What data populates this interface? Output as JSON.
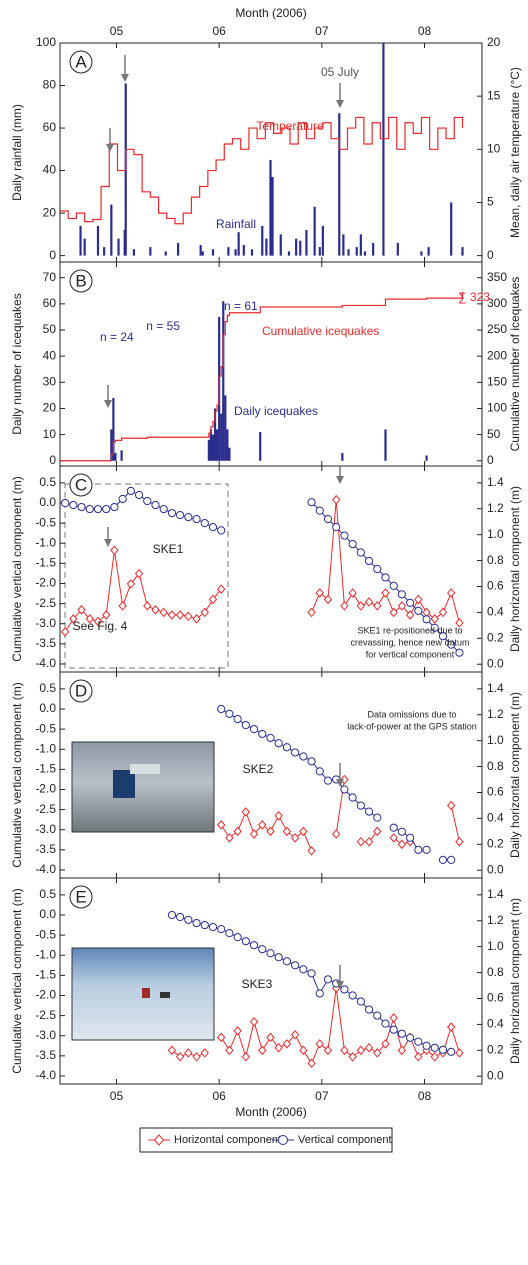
{
  "chart_data": [
    {
      "type": "combo",
      "label": "A",
      "x_label": "Month (2006)",
      "y_label": "Daily rainfall (mm)",
      "y2_label": "Mean, daily air temperature (°C)",
      "xlim": [
        4.45,
        8.56
      ],
      "xticks": [
        {
          "value": 5,
          "label": "05"
        },
        {
          "value": 6,
          "label": "06"
        },
        {
          "value": 7,
          "label": "07"
        },
        {
          "value": 8,
          "label": "08"
        }
      ],
      "ylim": [
        -3,
        100
      ],
      "yticks": [
        0,
        20,
        40,
        60,
        80,
        100
      ],
      "y2lim": [
        -0.6,
        20
      ],
      "y2ticks": [
        0,
        5,
        10,
        15,
        20
      ],
      "annotations": [
        "05 July",
        "Temperature",
        "Rainfall"
      ],
      "series": [
        {
          "name": "Rainfall",
          "type": "bar",
          "color": "#2b2d8c",
          "x": [
            4.65,
            4.69,
            4.82,
            4.88,
            4.95,
            5.02,
            5.08,
            5.09,
            5.17,
            5.33,
            5.48,
            5.6,
            5.82,
            5.84,
            5.94,
            6.09,
            6.16,
            6.19,
            6.24,
            6.32,
            6.42,
            6.46,
            6.5,
            6.52,
            6.6,
            6.68,
            6.75,
            6.79,
            6.85,
            6.93,
            6.98,
            7.01,
            7.17,
            7.21,
            7.26,
            7.34,
            7.38,
            7.42,
            7.5,
            7.6,
            7.74,
            7.97,
            8.04,
            8.26,
            8.37
          ],
          "values": [
            14,
            8,
            14,
            4,
            24,
            8,
            12,
            81,
            3,
            4,
            2,
            6,
            5,
            2,
            3,
            4,
            3,
            11,
            5,
            3,
            14,
            8,
            45,
            37,
            10,
            2,
            8,
            7,
            12,
            23,
            4,
            14,
            67,
            10,
            3,
            4,
            10,
            2,
            6,
            100,
            6,
            2,
            4,
            25,
            4
          ]
        },
        {
          "name": "Temperature",
          "type": "step",
          "axis": "y2",
          "color": "#e8292b",
          "x": [
            4.45,
            4.53,
            4.61,
            4.69,
            4.77,
            4.85,
            4.93,
            5.01,
            5.09,
            5.17,
            5.25,
            5.33,
            5.41,
            5.49,
            5.57,
            5.65,
            5.73,
            5.81,
            5.89,
            5.97,
            6.05,
            6.13,
            6.21,
            6.29,
            6.37,
            6.45,
            6.53,
            6.61,
            6.69,
            6.77,
            6.85,
            6.93,
            7.01,
            7.09,
            7.17,
            7.25,
            7.33,
            7.41,
            7.49,
            7.57,
            7.65,
            7.73,
            7.81,
            7.89,
            7.97,
            8.05,
            8.13,
            8.21,
            8.29,
            8.37
          ],
          "values": [
            4.2,
            3.5,
            4.0,
            3.2,
            3.4,
            6.5,
            10.5,
            8,
            10,
            9.5,
            6,
            5.5,
            4,
            3.5,
            3,
            4,
            5.5,
            6.5,
            8,
            9,
            10.5,
            11,
            10,
            12,
            11,
            12.5,
            11.5,
            12,
            10.5,
            12.5,
            11,
            12,
            12.5,
            11,
            10,
            12,
            13,
            10.5,
            12.5,
            11,
            13,
            10,
            12.5,
            11.5,
            13,
            10,
            12,
            11,
            13,
            12
          ]
        }
      ]
    },
    {
      "type": "combo",
      "label": "B",
      "y_label": "Daily number of icequakes",
      "y2_label": "Cumulative number of icequakes",
      "xlim": [
        4.45,
        8.56
      ],
      "ylim": [
        -2,
        76
      ],
      "yticks": [
        0,
        10,
        20,
        30,
        40,
        50,
        60,
        70
      ],
      "y2lim": [
        -10,
        380
      ],
      "y2ticks": [
        0,
        50,
        100,
        150,
        200,
        250,
        300,
        350
      ],
      "annotations": [
        "n = 24",
        "n = 55",
        "n = 61",
        "Cumulative icequakes",
        "Daily icequakes",
        "∑ 323"
      ],
      "series": [
        {
          "name": "Daily icequakes",
          "type": "bar",
          "color": "#2b2d8c",
          "x": [
            4.95,
            4.97,
            4.99,
            5.05,
            5.9,
            5.92,
            5.94,
            5.96,
            5.98,
            6.0,
            6.02,
            6.04,
            6.06,
            6.08,
            6.1,
            6.4,
            7.2,
            7.62,
            8.02
          ],
          "values": [
            12,
            24,
            3,
            4,
            8,
            12,
            10,
            20,
            12,
            55,
            18,
            61,
            25,
            12,
            5,
            11,
            3,
            12,
            2
          ]
        },
        {
          "name": "Cumulative icequakes",
          "type": "step",
          "axis": "y2",
          "color": "#e8292b",
          "x": [
            4.45,
            4.93,
            4.95,
            4.97,
            4.99,
            5.05,
            5.3,
            5.88,
            5.9,
            5.92,
            5.94,
            5.96,
            5.98,
            6.0,
            6.02,
            6.04,
            6.06,
            6.08,
            6.1,
            6.4,
            7.2,
            7.62,
            8.02,
            8.37
          ],
          "values": [
            0,
            0,
            12,
            36,
            39,
            43,
            45,
            45,
            53,
            65,
            75,
            95,
            107,
            162,
            180,
            241,
            266,
            278,
            283,
            294,
            297,
            309,
            311,
            323
          ]
        }
      ]
    },
    {
      "type": "line",
      "label": "C",
      "y_label": "Cumulative vertical component (m)",
      "y2_label": "Daily horizontal component (m)",
      "xlim": [
        4.45,
        8.56
      ],
      "ylim": [
        -4.2,
        0.92
      ],
      "yticks": [
        0.5,
        {
          "value": 0,
          "label": "0.0"
        },
        -0.5,
        {
          "value": -1,
          "label": "-1.0"
        },
        -1.5,
        {
          "value": -2,
          "label": "-2.0"
        },
        -2.5,
        {
          "value": -3,
          "label": "-3.0"
        },
        -3.5,
        {
          "value": -4,
          "label": "-4.0"
        }
      ],
      "y2lim": [
        -0.06,
        1.53
      ],
      "y2ticks": [
        {
          "value": 0,
          "label": "0.0"
        },
        0.2,
        0.4,
        0.6,
        0.8,
        {
          "value": 1,
          "label": "1.0"
        },
        1.2,
        1.4
      ],
      "annotations": [
        "SKE1",
        "See Fig. 4",
        "SKE1 re-positioned due to",
        "crevassing, hence new datum",
        "for vertical component"
      ],
      "x": [
        4.5,
        4.58,
        4.66,
        4.74,
        4.82,
        4.9,
        4.98,
        5.06,
        5.14,
        5.22,
        5.3,
        5.38,
        5.46,
        5.54,
        5.62,
        5.7,
        5.78,
        5.86,
        5.94,
        6.02,
        6.1,
        6.18,
        6.26,
        6.34,
        6.42,
        6.5,
        6.58,
        6.66,
        6.74,
        6.82,
        6.9,
        6.98,
        7.06,
        7.14,
        7.22,
        7.3,
        7.38,
        7.46,
        7.54,
        7.62,
        7.7,
        7.78,
        7.86,
        7.94,
        8.02,
        8.1,
        8.18,
        8.26,
        8.34
      ],
      "series": [
        {
          "name": "Horizontal component",
          "axis": "y2",
          "marker": "diamond",
          "color": "#e8292b",
          "values": [
            0.25,
            0.35,
            0.42,
            0.35,
            0.33,
            0.38,
            0.88,
            0.45,
            0.62,
            0.7,
            0.45,
            0.42,
            0.4,
            0.38,
            0.38,
            0.37,
            0.35,
            0.4,
            0.5,
            0.58,
            null,
            null,
            null,
            null,
            null,
            null,
            null,
            null,
            null,
            null,
            0.4,
            0.55,
            0.5,
            1.27,
            0.45,
            0.55,
            0.45,
            0.48,
            0.45,
            0.55,
            0.4,
            0.45,
            0.38,
            0.5,
            0.4,
            0.35,
            0.4,
            0.55,
            0.32
          ]
        },
        {
          "name": "Vertical component",
          "marker": "circle",
          "color": "#2a2f8f",
          "values": [
            0.0,
            -0.05,
            -0.1,
            -0.15,
            -0.15,
            -0.15,
            -0.1,
            0.1,
            0.3,
            0.2,
            0.05,
            -0.05,
            -0.15,
            -0.25,
            -0.3,
            -0.35,
            -0.4,
            -0.5,
            -0.6,
            -0.68,
            null,
            null,
            null,
            null,
            null,
            null,
            null,
            null,
            null,
            null,
            0.02,
            -0.19,
            -0.4,
            -0.6,
            -0.81,
            -1.02,
            -1.23,
            -1.44,
            -1.64,
            -1.85,
            -2.06,
            -2.27,
            -2.48,
            -2.68,
            -2.89,
            -3.1,
            -3.31,
            -3.52,
            -3.72
          ]
        }
      ]
    },
    {
      "type": "line",
      "label": "D",
      "y_label": "Cumulative vertical component (m)",
      "y2_label": "Daily horizontal component (m)",
      "xlim": [
        4.45,
        8.56
      ],
      "ylim": [
        -4.2,
        0.92
      ],
      "yticks": [
        0.5,
        {
          "value": 0,
          "label": "0.0"
        },
        -0.5,
        {
          "value": -1,
          "label": "-1.0"
        },
        -1.5,
        {
          "value": -2,
          "label": "-2.0"
        },
        -2.5,
        {
          "value": -3,
          "label": "-3.0"
        },
        -3.5,
        {
          "value": -4,
          "label": "-4.0"
        }
      ],
      "y2lim": [
        -0.06,
        1.53
      ],
      "y2ticks": [
        {
          "value": 0,
          "label": "0.0"
        },
        0.2,
        0.4,
        0.6,
        0.8,
        {
          "value": 1,
          "label": "1.0"
        },
        1.2,
        1.4
      ],
      "annotations": [
        "Data omissions due to",
        "lack-of-power at the GPS station",
        "SKE2"
      ],
      "x": [
        4.5,
        4.58,
        4.66,
        4.74,
        4.82,
        4.9,
        4.98,
        5.06,
        5.14,
        5.22,
        5.3,
        5.38,
        5.46,
        5.54,
        5.62,
        5.7,
        5.78,
        5.86,
        5.94,
        6.02,
        6.1,
        6.18,
        6.26,
        6.34,
        6.42,
        6.5,
        6.58,
        6.66,
        6.74,
        6.82,
        6.9,
        6.98,
        7.06,
        7.14,
        7.22,
        7.3,
        7.38,
        7.46,
        7.54,
        7.62,
        7.7,
        7.78,
        7.86,
        7.94,
        8.02,
        8.1,
        8.18,
        8.26,
        8.34
      ],
      "series": [
        {
          "name": "Horizontal component",
          "axis": "y2",
          "marker": "diamond",
          "color": "#e8292b",
          "values": [
            null,
            null,
            null,
            null,
            null,
            null,
            null,
            null,
            null,
            null,
            null,
            null,
            null,
            null,
            null,
            null,
            null,
            null,
            null,
            0.35,
            0.25,
            0.3,
            0.45,
            0.28,
            0.35,
            0.3,
            0.42,
            0.3,
            0.25,
            0.3,
            0.15,
            null,
            null,
            0.28,
            0.7,
            null,
            0.22,
            0.22,
            0.3,
            null,
            0.25,
            0.2,
            0.22,
            null,
            null,
            null,
            null,
            0.5,
            0.22
          ]
        },
        {
          "name": "Vertical component",
          "marker": "circle",
          "color": "#2a2f8f",
          "values": [
            null,
            null,
            null,
            null,
            null,
            null,
            null,
            null,
            null,
            null,
            null,
            null,
            null,
            null,
            null,
            null,
            null,
            null,
            null,
            0.0,
            -0.12,
            -0.25,
            -0.4,
            -0.5,
            -0.62,
            -0.72,
            -0.85,
            -0.95,
            -1.08,
            -1.18,
            -1.3,
            -1.55,
            -1.78,
            -1.75,
            -2.0,
            -2.2,
            -2.4,
            -2.55,
            -2.7,
            null,
            -2.95,
            -3.05,
            -3.2,
            -3.5,
            -3.5,
            null,
            -3.75,
            -3.75,
            null
          ]
        }
      ]
    },
    {
      "type": "line",
      "label": "E",
      "x_label": "Month (2006)",
      "y_label": "Cumulative vertical component (m)",
      "y2_label": "Daily horizontal component (m)",
      "xlim": [
        4.45,
        8.56
      ],
      "xticks": [
        {
          "value": 5,
          "label": "05"
        },
        {
          "value": 6,
          "label": "06"
        },
        {
          "value": 7,
          "label": "07"
        },
        {
          "value": 8,
          "label": "08"
        }
      ],
      "ylim": [
        -4.2,
        0.92
      ],
      "yticks": [
        0.5,
        {
          "value": 0,
          "label": "0.0"
        },
        -0.5,
        {
          "value": -1,
          "label": "-1.0"
        },
        -1.5,
        {
          "value": -2,
          "label": "-2.0"
        },
        -2.5,
        {
          "value": -3,
          "label": "-3.0"
        },
        -3.5,
        {
          "value": -4,
          "label": "-4.0"
        }
      ],
      "y2lim": [
        -0.06,
        1.53
      ],
      "y2ticks": [
        {
          "value": 0,
          "label": "0.0"
        },
        0.2,
        0.4,
        0.6,
        0.8,
        {
          "value": 1,
          "label": "1.0"
        },
        1.2,
        1.4
      ],
      "annotations": [
        "SKE3"
      ],
      "x": [
        4.5,
        4.58,
        4.66,
        4.74,
        4.82,
        4.9,
        4.98,
        5.06,
        5.14,
        5.22,
        5.3,
        5.38,
        5.46,
        5.54,
        5.62,
        5.7,
        5.78,
        5.86,
        5.94,
        6.02,
        6.1,
        6.18,
        6.26,
        6.34,
        6.42,
        6.5,
        6.58,
        6.66,
        6.74,
        6.82,
        6.9,
        6.98,
        7.06,
        7.14,
        7.22,
        7.3,
        7.38,
        7.46,
        7.54,
        7.62,
        7.7,
        7.78,
        7.86,
        7.94,
        8.02,
        8.1,
        8.18,
        8.26,
        8.34
      ],
      "series": [
        {
          "name": "Horizontal component",
          "axis": "y2",
          "marker": "diamond",
          "color": "#e8292b",
          "values": [
            null,
            null,
            null,
            null,
            null,
            null,
            null,
            null,
            null,
            null,
            null,
            null,
            null,
            0.2,
            0.15,
            0.18,
            0.15,
            0.18,
            null,
            0.3,
            0.2,
            0.35,
            0.15,
            0.42,
            0.2,
            0.3,
            0.22,
            0.25,
            0.32,
            0.2,
            0.1,
            0.25,
            0.2,
            0.68,
            0.2,
            0.15,
            0.2,
            0.22,
            0.18,
            0.25,
            0.45,
            0.2,
            0.3,
            0.15,
            0.2,
            0.15,
            0.18,
            0.38,
            0.18
          ]
        },
        {
          "name": "Vertical component",
          "marker": "circle",
          "color": "#2a2f8f",
          "values": [
            null,
            null,
            null,
            null,
            null,
            null,
            null,
            null,
            null,
            null,
            null,
            null,
            null,
            0.0,
            -0.05,
            -0.12,
            -0.2,
            -0.25,
            -0.3,
            -0.35,
            -0.45,
            -0.55,
            -0.65,
            -0.75,
            -0.85,
            -0.95,
            -1.05,
            -1.15,
            -1.25,
            -1.35,
            -1.45,
            -1.95,
            -1.6,
            -1.7,
            -1.85,
            -2.0,
            -2.15,
            -2.35,
            -2.5,
            -2.7,
            -2.85,
            -2.95,
            -3.05,
            -3.15,
            -3.25,
            -3.3,
            -3.35,
            -3.4,
            null
          ]
        }
      ]
    }
  ]
}
